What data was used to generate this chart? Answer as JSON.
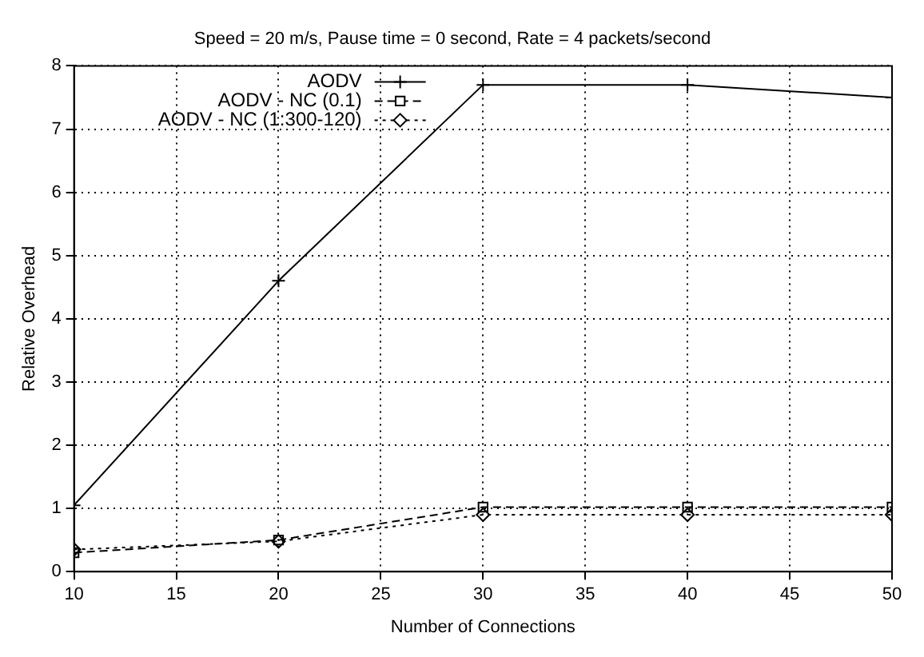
{
  "chart_data": {
    "type": "line",
    "title": "Speed = 20 m/s, Pause time = 0 second, Rate = 4 packets/second",
    "xlabel": "Number of Connections",
    "ylabel": "Relative Overhead",
    "x": [
      10,
      20,
      30,
      40,
      50
    ],
    "series": [
      {
        "name": "AODV",
        "color": "#000000",
        "values": [
          1.05,
          4.6,
          7.7,
          7.7,
          7.5
        ],
        "marker": "cross",
        "line_style": "solid"
      },
      {
        "name": "AODV - NC (0.1)",
        "color": "#000000",
        "values": [
          0.3,
          0.5,
          1.02,
          1.02,
          1.02
        ],
        "marker": "square",
        "line_style": "dashed"
      },
      {
        "name": "AODV - NC (1:300-120)",
        "color": "#000000",
        "values": [
          0.35,
          0.48,
          0.9,
          0.9,
          0.9
        ],
        "marker": "diamond",
        "line_style": "dotted"
      }
    ],
    "xlim": [
      10,
      50
    ],
    "xticks": [
      10,
      15,
      20,
      25,
      30,
      35,
      40,
      45,
      50
    ],
    "ylim": [
      0,
      8
    ],
    "yticks": [
      0,
      1,
      2,
      3,
      4,
      5,
      6,
      7,
      8
    ],
    "grid": true,
    "legend": "top left"
  }
}
